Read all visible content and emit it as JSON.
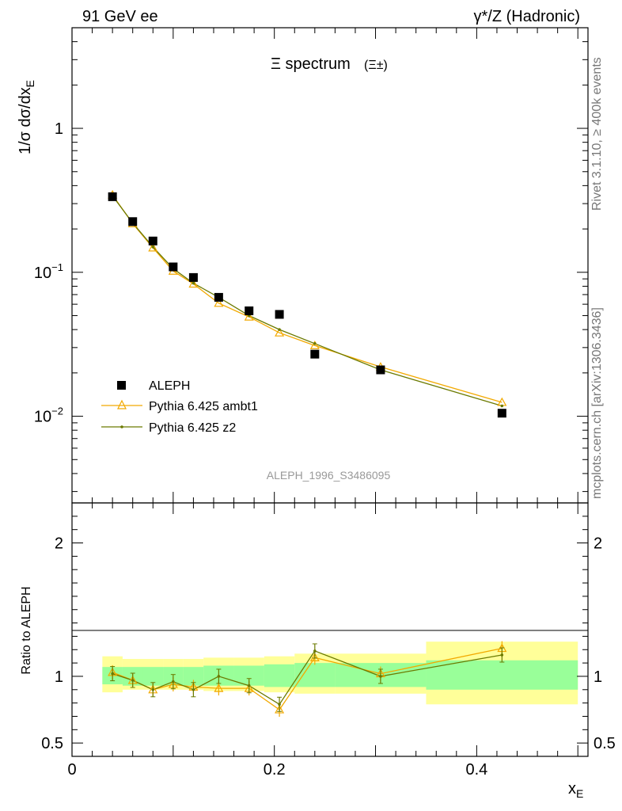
{
  "header": {
    "left_label": "91 GeV ee",
    "right_label": "γ*/Z (Hadronic)"
  },
  "side_text": {
    "rivet": "Rivet 3.1.10, ≥ 400k events",
    "source": "mcplots.cern.ch [arXiv:1306.3436]"
  },
  "plot_title": {
    "main": "Ξ spectrum",
    "sub": "(Ξ±)"
  },
  "watermark": "ALEPH_1996_S3486095",
  "colors": {
    "data": "#000000",
    "ambt1": "#f2a900",
    "z2": "#6b7a00",
    "band_inner": "#99ff99",
    "band_outer": "#ffff99"
  },
  "chart_data": [
    {
      "type": "scatter",
      "ylabel": "1/σ dσ/dx_E",
      "yscale": "log",
      "ylim": [
        0.0025,
        5
      ],
      "xlim": [
        0,
        0.51
      ],
      "y_tick_labels": [
        "1",
        "10^-1",
        "10^-2"
      ],
      "y_ticks": [
        1,
        0.1,
        0.01
      ],
      "legend_position": "lower-left",
      "series": [
        {
          "name": "ALEPH",
          "marker": "filled-square",
          "x": [
            0.04,
            0.06,
            0.08,
            0.1,
            0.12,
            0.145,
            0.175,
            0.205,
            0.24,
            0.305,
            0.425
          ],
          "values": [
            0.335,
            0.225,
            0.165,
            0.109,
            0.092,
            0.067,
            0.054,
            0.051,
            0.027,
            0.021,
            0.0105
          ]
        },
        {
          "name": "Pythia 6.425 ambt1",
          "marker": "open-triangle",
          "x": [
            0.04,
            0.06,
            0.08,
            0.1,
            0.12,
            0.145,
            0.175,
            0.205,
            0.24,
            0.305,
            0.425
          ],
          "values": [
            0.345,
            0.218,
            0.148,
            0.102,
            0.083,
            0.061,
            0.049,
            0.038,
            0.031,
            0.022,
            0.0125
          ]
        },
        {
          "name": "Pythia 6.425 z2",
          "marker": "small-dot",
          "x": [
            0.04,
            0.06,
            0.08,
            0.1,
            0.12,
            0.145,
            0.175,
            0.205,
            0.24,
            0.305,
            0.425
          ],
          "values": [
            0.34,
            0.22,
            0.15,
            0.106,
            0.084,
            0.067,
            0.05,
            0.04,
            0.032,
            0.021,
            0.0118
          ]
        }
      ]
    },
    {
      "type": "line",
      "ylabel": "Ratio to ALEPH",
      "xlabel": "x_E",
      "ylim": [
        0.4,
        2.3
      ],
      "xlim": [
        0,
        0.51
      ],
      "y_ticks": [
        0.5,
        1,
        2
      ],
      "y_tick_labels": [
        "0.5",
        "1",
        "2"
      ],
      "x_ticks": [
        0,
        0.2,
        0.4
      ],
      "x_tick_labels": [
        "0",
        "0.2",
        "0.4"
      ],
      "bins": [
        {
          "lo": 0.03,
          "hi": 0.05,
          "inner": [
            0.94,
            1.07
          ],
          "outer": [
            0.88,
            1.15
          ]
        },
        {
          "lo": 0.05,
          "hi": 0.07,
          "inner": [
            0.93,
            1.07
          ],
          "outer": [
            0.9,
            1.13
          ]
        },
        {
          "lo": 0.07,
          "hi": 0.09,
          "inner": [
            0.93,
            1.07
          ],
          "outer": [
            0.9,
            1.13
          ]
        },
        {
          "lo": 0.09,
          "hi": 0.11,
          "inner": [
            0.93,
            1.07
          ],
          "outer": [
            0.9,
            1.13
          ]
        },
        {
          "lo": 0.11,
          "hi": 0.13,
          "inner": [
            0.93,
            1.07
          ],
          "outer": [
            0.9,
            1.13
          ]
        },
        {
          "lo": 0.13,
          "hi": 0.16,
          "inner": [
            0.93,
            1.08
          ],
          "outer": [
            0.89,
            1.14
          ]
        },
        {
          "lo": 0.16,
          "hi": 0.19,
          "inner": [
            0.93,
            1.08
          ],
          "outer": [
            0.89,
            1.14
          ]
        },
        {
          "lo": 0.19,
          "hi": 0.22,
          "inner": [
            0.92,
            1.09
          ],
          "outer": [
            0.88,
            1.15
          ]
        },
        {
          "lo": 0.22,
          "hi": 0.26,
          "inner": [
            0.92,
            1.1
          ],
          "outer": [
            0.87,
            1.17
          ]
        },
        {
          "lo": 0.26,
          "hi": 0.35,
          "inner": [
            0.92,
            1.1
          ],
          "outer": [
            0.87,
            1.17
          ]
        },
        {
          "lo": 0.35,
          "hi": 0.5,
          "inner": [
            0.9,
            1.12
          ],
          "outer": [
            0.79,
            1.26
          ]
        }
      ],
      "series": [
        {
          "name": "Pythia 6.425 ambt1",
          "x": [
            0.04,
            0.06,
            0.08,
            0.1,
            0.12,
            0.145,
            0.175,
            0.205,
            0.24,
            0.305,
            0.425
          ],
          "values": [
            1.03,
            0.97,
            0.9,
            0.94,
            0.92,
            0.91,
            0.91,
            0.75,
            1.14,
            1.02,
            1.21
          ]
        },
        {
          "name": "Pythia 6.425 z2",
          "x": [
            0.04,
            0.06,
            0.08,
            0.1,
            0.12,
            0.145,
            0.175,
            0.205,
            0.24,
            0.305,
            0.425
          ],
          "values": [
            1.02,
            0.97,
            0.9,
            0.96,
            0.9,
            1.0,
            0.93,
            0.79,
            1.19,
            1.0,
            1.16
          ]
        }
      ]
    }
  ]
}
